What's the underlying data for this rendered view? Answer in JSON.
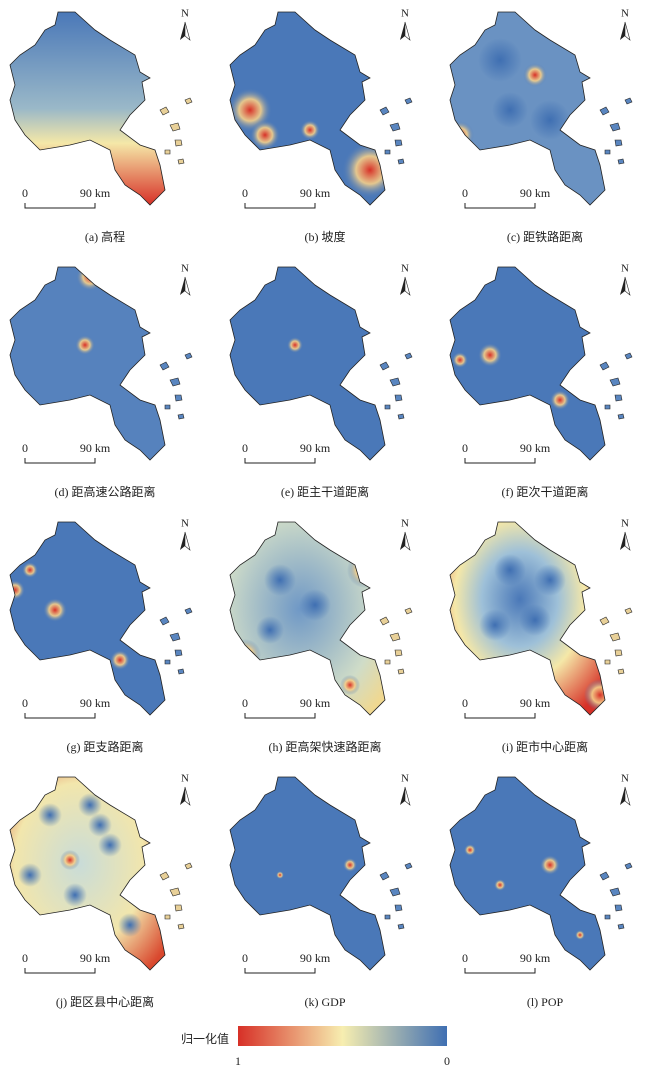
{
  "panels": [
    {
      "caption": "(a) 高程",
      "north": "N",
      "scale_zero": "0",
      "scale_length": "90 km"
    },
    {
      "caption": "(b) 坡度",
      "north": "N",
      "scale_zero": "0",
      "scale_length": "90 km"
    },
    {
      "caption": "(c) 距铁路距离",
      "north": "N",
      "scale_zero": "0",
      "scale_length": "90 km"
    },
    {
      "caption": "(d) 距高速公路距离",
      "north": "N",
      "scale_zero": "0",
      "scale_length": "90 km"
    },
    {
      "caption": "(e) 距主干道距离",
      "north": "N",
      "scale_zero": "0",
      "scale_length": "90 km"
    },
    {
      "caption": "(f) 距次干道距离",
      "north": "N",
      "scale_zero": "0",
      "scale_length": "90 km"
    },
    {
      "caption": "(g) 距支路距离",
      "north": "N",
      "scale_zero": "0",
      "scale_length": "90 km"
    },
    {
      "caption": "(h) 距高架快速路距离",
      "north": "N",
      "scale_zero": "0",
      "scale_length": "90 km"
    },
    {
      "caption": "(i) 距市中心距离",
      "north": "N",
      "scale_zero": "0",
      "scale_length": "90 km"
    },
    {
      "caption": "(j) 距区县中心距离",
      "north": "N",
      "scale_zero": "0",
      "scale_length": "90 km"
    },
    {
      "caption": "(k) GDP",
      "north": "N",
      "scale_zero": "0",
      "scale_length": "90 km"
    },
    {
      "caption": "(l) POP",
      "north": "N",
      "scale_zero": "0",
      "scale_length": "90 km"
    }
  ],
  "legend": {
    "title": "归一化值",
    "left_label": "1",
    "right_label": "0"
  }
}
